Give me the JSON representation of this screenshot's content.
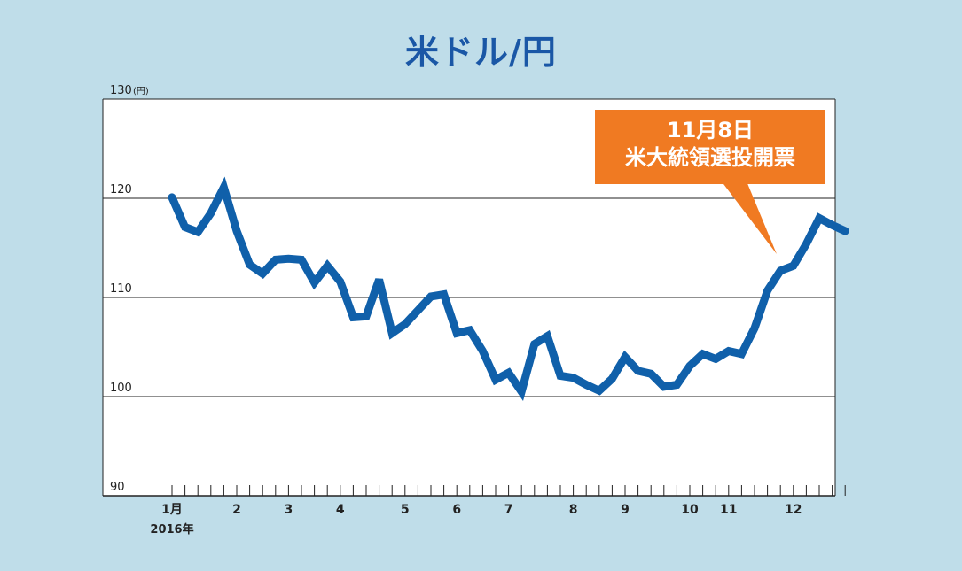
{
  "title": "米ドル/円",
  "callout": {
    "line1": "11月8日",
    "line2": "米大統領選投開票",
    "color": "#f07a22"
  },
  "colors": {
    "background": "#bfdde9",
    "plot_area": "#ffffff",
    "line": "#1060aa",
    "title": "#1a57a6"
  },
  "chart_data": {
    "type": "line",
    "title": "米ドル/円",
    "y_unit": "(円)",
    "ylim": [
      90,
      130
    ],
    "y_ticks": [
      90,
      100,
      110,
      120,
      130
    ],
    "y_tick_labels": [
      "90",
      "100",
      "110",
      "120",
      "130"
    ],
    "x_year_label": "2016年",
    "x_month_labels": [
      "1月",
      "2",
      "3",
      "4",
      "5",
      "6",
      "7",
      "8",
      "9",
      "10",
      "11",
      "12"
    ],
    "x_month_week_index": [
      0,
      5,
      9,
      13,
      18,
      22,
      26,
      31,
      35,
      40,
      43,
      48
    ],
    "grid": "horizontal",
    "weekly_tick_count": 53,
    "series": [
      {
        "values": [
          120.1,
          117.1,
          116.6,
          118.5,
          121.1,
          116.7,
          113.3,
          112.4,
          113.8,
          113.9,
          113.8,
          111.5,
          113.2,
          111.6,
          108.0,
          108.1,
          111.8,
          106.4,
          107.3,
          108.7,
          110.1,
          110.3,
          106.4,
          106.7,
          104.6,
          101.7,
          102.4,
          100.5,
          105.3,
          106.1,
          102.1,
          101.9,
          101.2,
          100.6,
          101.8,
          104.0,
          102.6,
          102.3,
          101.0,
          101.2,
          103.1,
          104.3,
          103.8,
          104.6,
          104.3,
          106.9,
          110.7,
          112.7,
          113.2,
          115.4,
          118.0,
          117.3,
          116.7
        ]
      }
    ]
  }
}
